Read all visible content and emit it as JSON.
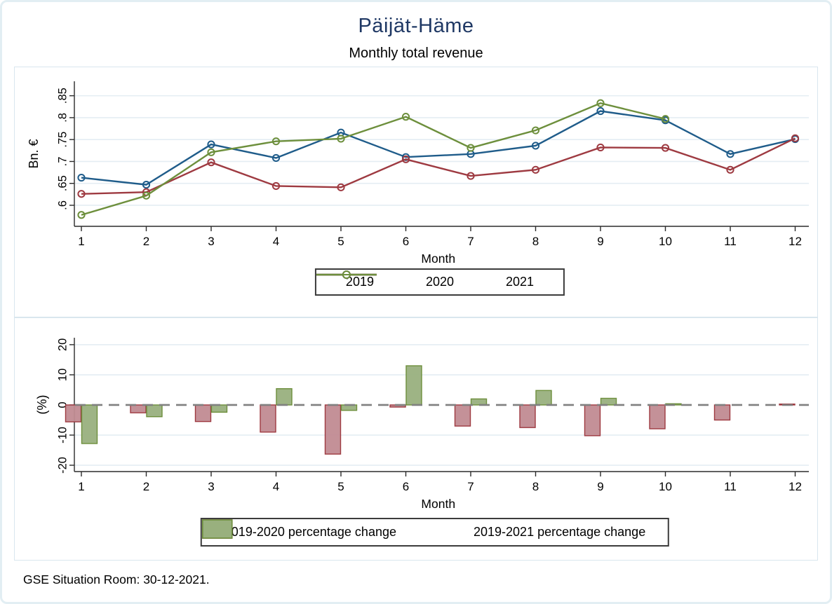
{
  "title": "Päijät-Häme",
  "subtitle": "Monthly total revenue",
  "footer": "GSE Situation Room: 30-12-2021.",
  "colors": {
    "title_navy": "#1f3864",
    "grid": "#e4edf3",
    "axis": "#2b2b2b",
    "zero_dash": "#808080",
    "line_2019": "#1f5c8a",
    "line_2020": "#9e3a41",
    "line_2021": "#6d8f3c",
    "bar_2020_fill": "#c18b92",
    "bar_2020_stroke": "#9e3a41",
    "bar_2021_fill": "#99b07e",
    "bar_2021_stroke": "#6d8f3c"
  },
  "chart_data": [
    {
      "type": "line",
      "panel": "top",
      "xlabel": "Month",
      "ylabel": "Bn. €",
      "categories": [
        "1",
        "2",
        "3",
        "4",
        "5",
        "6",
        "7",
        "8",
        "9",
        "10",
        "11",
        "12"
      ],
      "yticks": [
        {
          "v": 0.6,
          "label": ".6"
        },
        {
          "v": 0.65,
          "label": ".65"
        },
        {
          "v": 0.7,
          "label": ".7"
        },
        {
          "v": 0.75,
          "label": ".75"
        },
        {
          "v": 0.8,
          "label": ".8"
        },
        {
          "v": 0.85,
          "label": ".85"
        }
      ],
      "ylim": [
        0.552,
        0.883
      ],
      "grid": true,
      "legend_position": "bottom",
      "marker": "hollow-circle",
      "series": [
        {
          "name": "2019",
          "color_key": "line_2019",
          "values": [
            0.663,
            0.647,
            0.739,
            0.708,
            0.766,
            0.71,
            0.717,
            0.736,
            0.815,
            0.794,
            0.717,
            0.751
          ]
        },
        {
          "name": "2020",
          "color_key": "line_2020",
          "values": [
            0.626,
            0.63,
            0.698,
            0.644,
            0.641,
            0.705,
            0.667,
            0.681,
            0.732,
            0.731,
            0.681,
            0.753
          ]
        },
        {
          "name": "2021",
          "color_key": "line_2021",
          "values": [
            0.578,
            0.622,
            0.721,
            0.746,
            0.752,
            0.802,
            0.731,
            0.771,
            0.833,
            0.797,
            null,
            null
          ]
        }
      ]
    },
    {
      "type": "bar",
      "panel": "bottom",
      "xlabel": "Month",
      "ylabel": "(%)",
      "categories": [
        "1",
        "2",
        "3",
        "4",
        "5",
        "6",
        "7",
        "8",
        "9",
        "10",
        "11",
        "12"
      ],
      "yticks": [
        {
          "v": 20,
          "label": "20"
        },
        {
          "v": 10,
          "label": "10"
        },
        {
          "v": 0,
          "label": "0"
        },
        {
          "v": -10,
          "label": "-10"
        },
        {
          "v": -20,
          "label": "-20"
        }
      ],
      "ylim": [
        -22.1,
        22.3
      ],
      "grid": true,
      "zero_line": "dashed",
      "legend_position": "bottom",
      "series": [
        {
          "name": "2019-2020 percentage change",
          "fill_key": "bar_2020_fill",
          "stroke_key": "bar_2020_stroke",
          "values": [
            -5.6,
            -2.6,
            -5.5,
            -9.0,
            -16.3,
            -0.7,
            -7.0,
            -7.5,
            -10.2,
            -7.9,
            -5.0,
            0.3
          ]
        },
        {
          "name": "2019-2021 percentage change",
          "fill_key": "bar_2021_fill",
          "stroke_key": "bar_2021_stroke",
          "values": [
            -12.8,
            -3.9,
            -2.4,
            5.4,
            -1.8,
            13.0,
            2.0,
            4.8,
            2.2,
            0.4,
            null,
            null
          ]
        }
      ]
    }
  ]
}
